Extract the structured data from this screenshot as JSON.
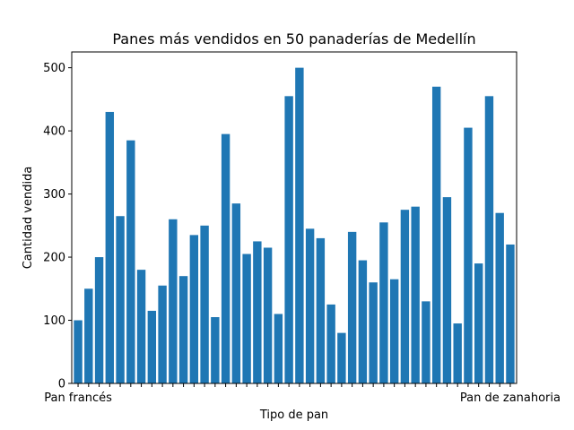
{
  "chart_data": {
    "type": "bar",
    "title": "Panes más vendidos en 50 panaderías de Medellín",
    "xlabel": "Tipo de pan",
    "ylabel": "Cantidad vendida",
    "ylim": [
      0,
      525
    ],
    "yticks": [
      0,
      100,
      200,
      300,
      400,
      500
    ],
    "grid": false,
    "color": "#1f77b4",
    "values": [
      100,
      150,
      200,
      430,
      265,
      385,
      180,
      115,
      155,
      260,
      170,
      235,
      250,
      105,
      395,
      285,
      205,
      225,
      215,
      110,
      455,
      500,
      245,
      230,
      125,
      80,
      240,
      195,
      160,
      255,
      165,
      275,
      280,
      130,
      470,
      295,
      95,
      405,
      190,
      455,
      270,
      220
    ],
    "first_tick_label": "Pan francés",
    "last_tick_label": "Pan de zanahoria"
  }
}
